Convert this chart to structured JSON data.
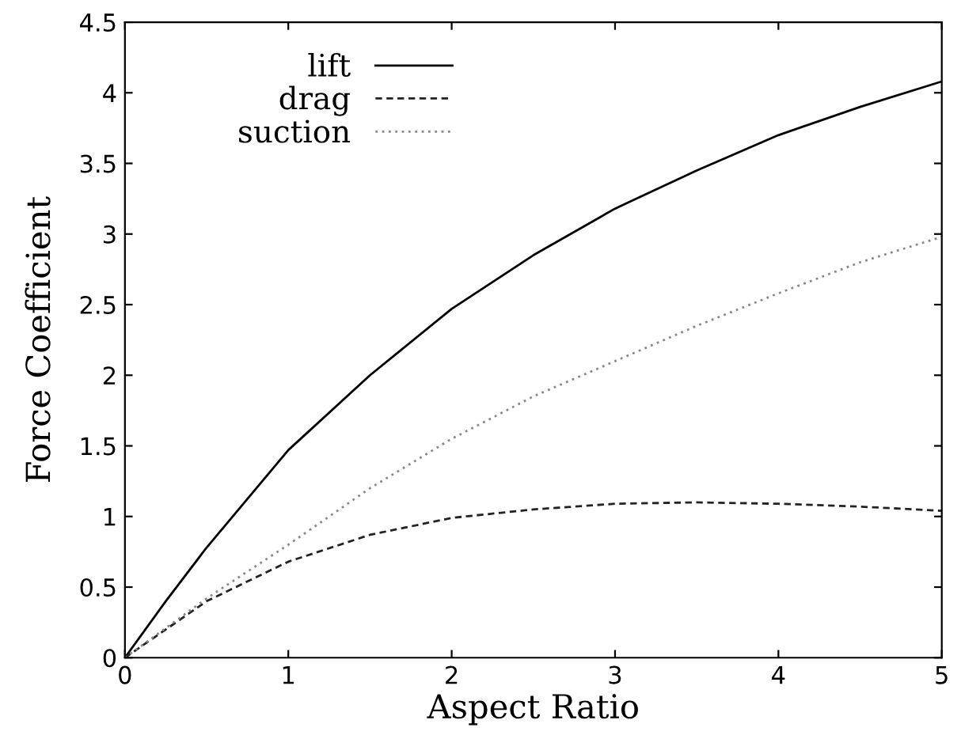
{
  "chart_data": {
    "type": "line",
    "xlabel": "Aspect Ratio",
    "ylabel": "Force Coefficient",
    "x": [
      0,
      0.25,
      0.5,
      1,
      1.5,
      2,
      2.5,
      3,
      3.5,
      4,
      4.5,
      5
    ],
    "series": [
      {
        "name": "lift",
        "color": "#000000",
        "line_style": "solid",
        "values": [
          0,
          0.4,
          0.78,
          1.47,
          2.0,
          2.47,
          2.85,
          3.18,
          3.45,
          3.7,
          3.9,
          4.08
        ]
      },
      {
        "name": "drag",
        "color": "#222222",
        "line_style": "dashed",
        "values": [
          0,
          0.2,
          0.4,
          0.68,
          0.87,
          0.99,
          1.05,
          1.09,
          1.1,
          1.09,
          1.07,
          1.04
        ]
      },
      {
        "name": "suction",
        "color": "#888888",
        "line_style": "dotted",
        "values": [
          0,
          0.21,
          0.42,
          0.8,
          1.2,
          1.55,
          1.85,
          2.1,
          2.35,
          2.58,
          2.8,
          2.98
        ]
      }
    ],
    "xlim": [
      0,
      5
    ],
    "xticks": [
      0,
      1,
      2,
      3,
      4,
      5
    ],
    "ylim": [
      0,
      4.5
    ],
    "yticks": [
      0,
      0.5,
      1,
      1.5,
      2,
      2.5,
      3,
      3.5,
      4,
      4.5
    ],
    "grid": false,
    "legend": "top left",
    "marker": "none"
  }
}
